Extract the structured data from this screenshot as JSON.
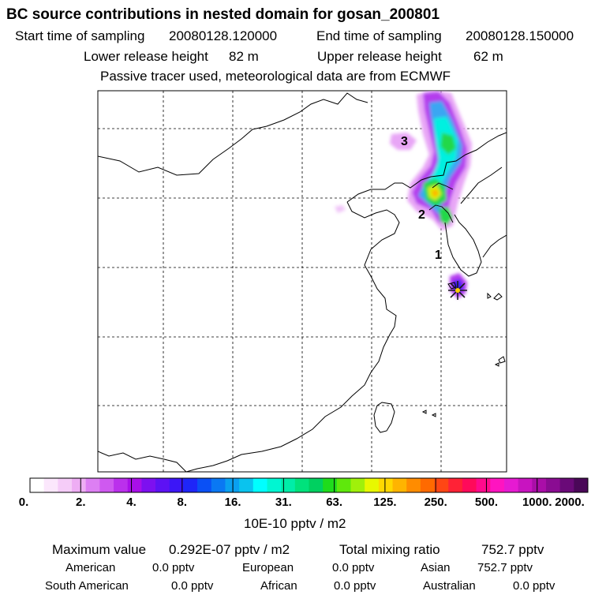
{
  "header": {
    "title": "BC  source contributions in nested domain for gosan_200801",
    "start_label": "Start time of sampling",
    "start_value": "20080128.120000",
    "end_label": "End time of sampling",
    "end_value": "20080128.150000",
    "lower_label": "Lower release height",
    "lower_value": "82 m",
    "upper_label": "Upper release height",
    "upper_value": "62 m",
    "tracer_note": "Passive tracer used, meteorological data are from ECMWF"
  },
  "map": {
    "labels": [
      "3",
      "2",
      "1"
    ],
    "receptor": "gosan"
  },
  "colorbar": {
    "tick_labels": [
      "0.",
      "2.",
      "4.",
      "8.",
      "16.",
      "31.",
      "63.",
      "125.",
      "250.",
      "500.",
      "1000.",
      "2000."
    ],
    "units": "10E-10 pptv / m2",
    "colors": [
      "#ffffff",
      "#fbe7fc",
      "#f5ccf8",
      "#eeadf4",
      "#dd7ff3",
      "#cf59f0",
      "#bb30ec",
      "#a90fe9",
      "#7d10f0",
      "#5d12f4",
      "#3c16f7",
      "#1e26f8",
      "#0a50f5",
      "#0a78f3",
      "#0aa0f0",
      "#0ac3ee",
      "#00ffff",
      "#00f6d2",
      "#00eda8",
      "#00e27c",
      "#00d060",
      "#1fdc1c",
      "#5fe80c",
      "#a0f00a",
      "#e8f800",
      "#ffd800",
      "#ffb400",
      "#ff8c00",
      "#ff6a00",
      "#ff4614",
      "#ff2236",
      "#ff0a5a",
      "#ff0a8c",
      "#ff14c0",
      "#e61ad2",
      "#c814c0",
      "#aa0ea8",
      "#8a0c92",
      "#6a0a78",
      "#4a0858"
    ]
  },
  "stats": {
    "max_label": "Maximum value",
    "max_value": "0.292E-07 pptv / m2",
    "total_label": "Total mixing ratio",
    "total_value": "752.7 pptv",
    "regions": [
      {
        "name": "American",
        "value": "0.0 pptv"
      },
      {
        "name": "European",
        "value": "0.0 pptv"
      },
      {
        "name": "Asian",
        "value": "752.7 pptv"
      },
      {
        "name": "South American",
        "value": "0.0 pptv"
      },
      {
        "name": "African",
        "value": "0.0 pptv"
      },
      {
        "name": "Australian",
        "value": "0.0 pptv"
      }
    ]
  }
}
